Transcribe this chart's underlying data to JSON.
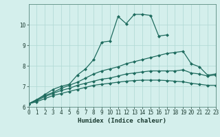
{
  "title": "",
  "xlabel": "Humidex (Indice chaleur)",
  "xlim": [
    0,
    23
  ],
  "ylim": [
    6,
    11
  ],
  "yticks": [
    6,
    7,
    8,
    9,
    10
  ],
  "xticks": [
    0,
    1,
    2,
    3,
    4,
    5,
    6,
    7,
    8,
    9,
    10,
    11,
    12,
    13,
    14,
    15,
    16,
    17,
    18,
    19,
    20,
    21,
    22,
    23
  ],
  "bg_color": "#d4efec",
  "grid_color": "#aed8d3",
  "line_color": "#1e6b5e",
  "series": [
    {
      "x": [
        0,
        1,
        2,
        3,
        4,
        5,
        6,
        7,
        8,
        9,
        10,
        11,
        12,
        13,
        14,
        15,
        16,
        17
      ],
      "y": [
        6.15,
        6.35,
        6.6,
        6.85,
        7.0,
        7.1,
        7.55,
        7.85,
        8.3,
        9.15,
        9.2,
        10.4,
        10.05,
        10.5,
        10.5,
        10.45,
        9.45,
        9.5
      ],
      "marker": "D",
      "markersize": 2.0,
      "linewidth": 0.9
    },
    {
      "x": [
        0,
        1,
        2,
        3,
        4,
        5,
        6,
        7,
        8,
        9,
        10,
        11,
        12,
        13,
        14,
        15,
        16,
        17,
        18,
        19,
        20,
        21,
        22,
        23
      ],
      "y": [
        6.15,
        6.35,
        6.55,
        6.7,
        6.9,
        7.05,
        7.2,
        7.4,
        7.6,
        7.75,
        7.85,
        7.95,
        8.1,
        8.2,
        8.3,
        8.4,
        8.5,
        8.6,
        8.65,
        8.7,
        8.1,
        7.95,
        7.55,
        7.6
      ],
      "marker": "D",
      "markersize": 2.0,
      "linewidth": 0.9
    },
    {
      "x": [
        0,
        1,
        2,
        3,
        4,
        5,
        6,
        7,
        8,
        9,
        10,
        11,
        12,
        13,
        14,
        15,
        16,
        17,
        18,
        19,
        20,
        21,
        22,
        23
      ],
      "y": [
        6.15,
        6.3,
        6.5,
        6.65,
        6.8,
        6.9,
        7.05,
        7.15,
        7.25,
        7.35,
        7.4,
        7.5,
        7.6,
        7.65,
        7.7,
        7.75,
        7.75,
        7.75,
        7.75,
        7.8,
        7.65,
        7.6,
        7.5,
        7.55
      ],
      "marker": "D",
      "markersize": 2.0,
      "linewidth": 0.9
    },
    {
      "x": [
        0,
        1,
        2,
        3,
        4,
        5,
        6,
        7,
        8,
        9,
        10,
        11,
        12,
        13,
        14,
        15,
        16,
        17,
        18,
        19,
        20,
        21,
        22,
        23
      ],
      "y": [
        6.15,
        6.25,
        6.4,
        6.55,
        6.65,
        6.75,
        6.85,
        6.95,
        7.05,
        7.1,
        7.15,
        7.2,
        7.25,
        7.28,
        7.3,
        7.3,
        7.3,
        7.28,
        7.25,
        7.22,
        7.15,
        7.1,
        7.05,
        7.05
      ],
      "marker": "D",
      "markersize": 2.0,
      "linewidth": 0.9
    }
  ]
}
